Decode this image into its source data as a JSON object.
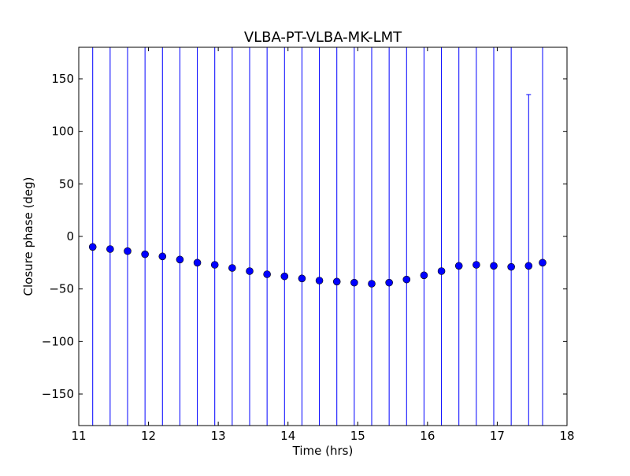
{
  "chart_data": {
    "type": "scatter",
    "title": "VLBA-PT-VLBA-MK-LMT",
    "xlabel": "Time (hrs)",
    "ylabel": "Closure phase (deg)",
    "xlim": [
      11,
      18
    ],
    "ylim": [
      -180,
      180
    ],
    "xticks": [
      11,
      12,
      13,
      14,
      15,
      16,
      17,
      18
    ],
    "yticks": [
      -150,
      -100,
      -50,
      0,
      50,
      100,
      150
    ],
    "grid": false,
    "legend": "none",
    "marker_color": "#0000ff",
    "errorbar_color": "#0000ff",
    "series": [
      {
        "x": [
          11.2,
          11.45,
          11.7,
          11.95,
          12.2,
          12.45,
          12.7,
          12.95,
          13.2,
          13.45,
          13.7,
          13.95,
          14.2,
          14.45,
          14.7,
          14.95,
          15.2,
          15.45,
          15.7,
          15.95,
          16.2,
          16.45,
          16.7,
          16.95,
          17.2,
          17.45,
          17.65
        ],
        "y": [
          -10,
          -12,
          -14,
          -17,
          -19,
          -22,
          -25,
          -27,
          -30,
          -33,
          -36,
          -38,
          -40,
          -42,
          -43,
          -44,
          -45,
          -44,
          -41,
          -37,
          -33,
          -28,
          -27,
          -28,
          -29,
          -28,
          -25
        ],
        "yerr_low": [
          -180,
          -180,
          -180,
          -180,
          -180,
          -180,
          -180,
          -180,
          -180,
          -180,
          -180,
          -180,
          -180,
          -180,
          -180,
          -180,
          -180,
          -180,
          -180,
          -180,
          -180,
          -180,
          -180,
          -180,
          -180,
          -180,
          -180
        ],
        "yerr_high": [
          180,
          180,
          180,
          180,
          180,
          180,
          180,
          180,
          180,
          180,
          180,
          180,
          180,
          180,
          180,
          180,
          180,
          180,
          180,
          180,
          180,
          180,
          180,
          180,
          180,
          135,
          180
        ]
      }
    ]
  }
}
